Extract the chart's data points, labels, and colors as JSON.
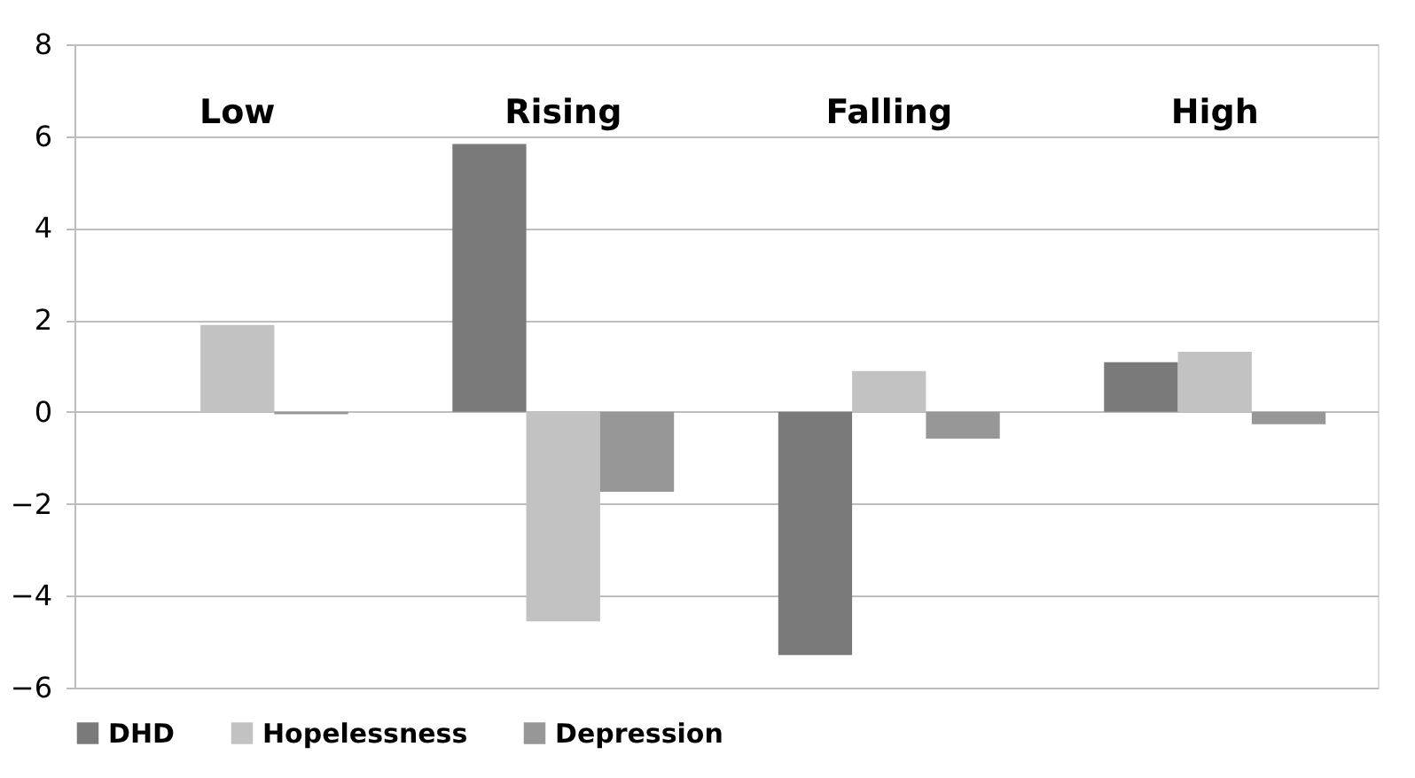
{
  "chart_data": {
    "type": "bar",
    "categories": [
      "Low",
      "Rising",
      "Falling",
      "High"
    ],
    "series": [
      {
        "name": "DHD",
        "color": "#7a7a7a",
        "values": [
          0,
          5.83,
          -5.29,
          1.08
        ]
      },
      {
        "name": "Hopelessness",
        "color": "#c2c2c2",
        "values": [
          1.89,
          -4.56,
          0.89,
          1.31
        ]
      },
      {
        "name": "Depression",
        "color": "#979797",
        "values": [
          -0.05,
          -1.74,
          -0.58,
          -0.27
        ]
      }
    ],
    "ylim": [
      -6,
      8
    ],
    "yticks": [
      -6,
      -4,
      -2,
      0,
      2,
      4,
      6,
      8
    ],
    "grid": "y",
    "legend": "bottom"
  }
}
